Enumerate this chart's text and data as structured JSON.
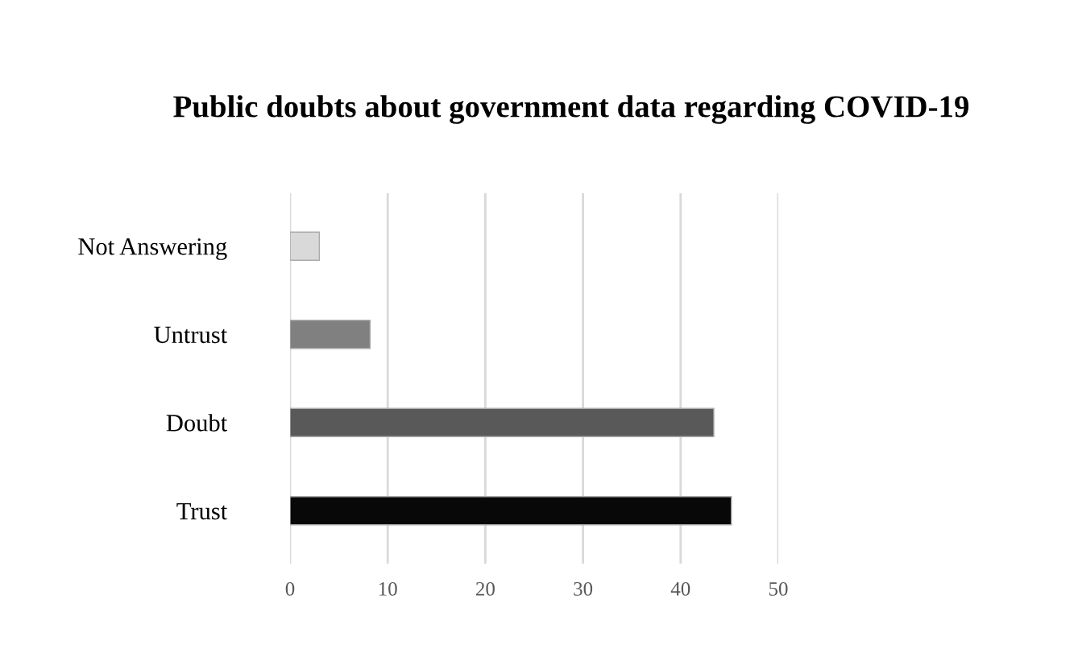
{
  "chart_data": {
    "type": "bar",
    "orientation": "horizontal",
    "title": "Public doubts about government data regarding COVID-19",
    "categories": [
      "Not Answering",
      "Untrust",
      "Doubt",
      "Trust"
    ],
    "values": [
      3.0,
      8.2,
      43.4,
      45.2
    ],
    "colors": [
      "#d9d9d9",
      "#808080",
      "#595959",
      "#080808"
    ],
    "xlim": [
      0,
      50
    ],
    "xticks": [
      0,
      10,
      20,
      30,
      40,
      50
    ],
    "grid": "x"
  }
}
